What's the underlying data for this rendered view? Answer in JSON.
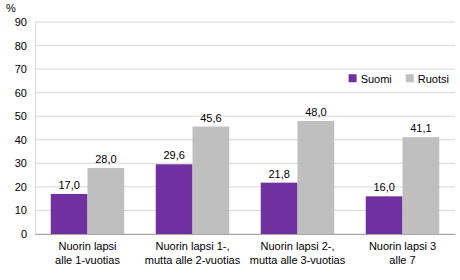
{
  "chart_data": {
    "type": "bar",
    "y_label": "%",
    "categories": [
      "Nuorin lapsi\nalle 1-vuotias",
      "Nuorin lapsi 1-,\nmutta alle 2-vuotias",
      "Nuorin lapsi 2-,\nmutta alle 3-vuotias",
      "Nuorin lapsi 3\nalle 7"
    ],
    "series": [
      {
        "name": "Suomi",
        "color": "#7030a0",
        "values": [
          17.0,
          29.6,
          21.8,
          16.0
        ],
        "value_labels": [
          "17,0",
          "29,6",
          "21,8",
          "16,0"
        ]
      },
      {
        "name": "Ruotsi",
        "color": "#bfbfbf",
        "values": [
          28.0,
          45.6,
          48.0,
          41.1
        ],
        "value_labels": [
          "28,0",
          "45,6",
          "48,0",
          "41,1"
        ]
      }
    ],
    "ylim": [
      0,
      90
    ],
    "yticks": [
      0,
      10,
      20,
      30,
      40,
      50,
      60,
      70,
      80,
      90
    ],
    "grid": true,
    "legend": "upper right",
    "data_labels": true
  }
}
